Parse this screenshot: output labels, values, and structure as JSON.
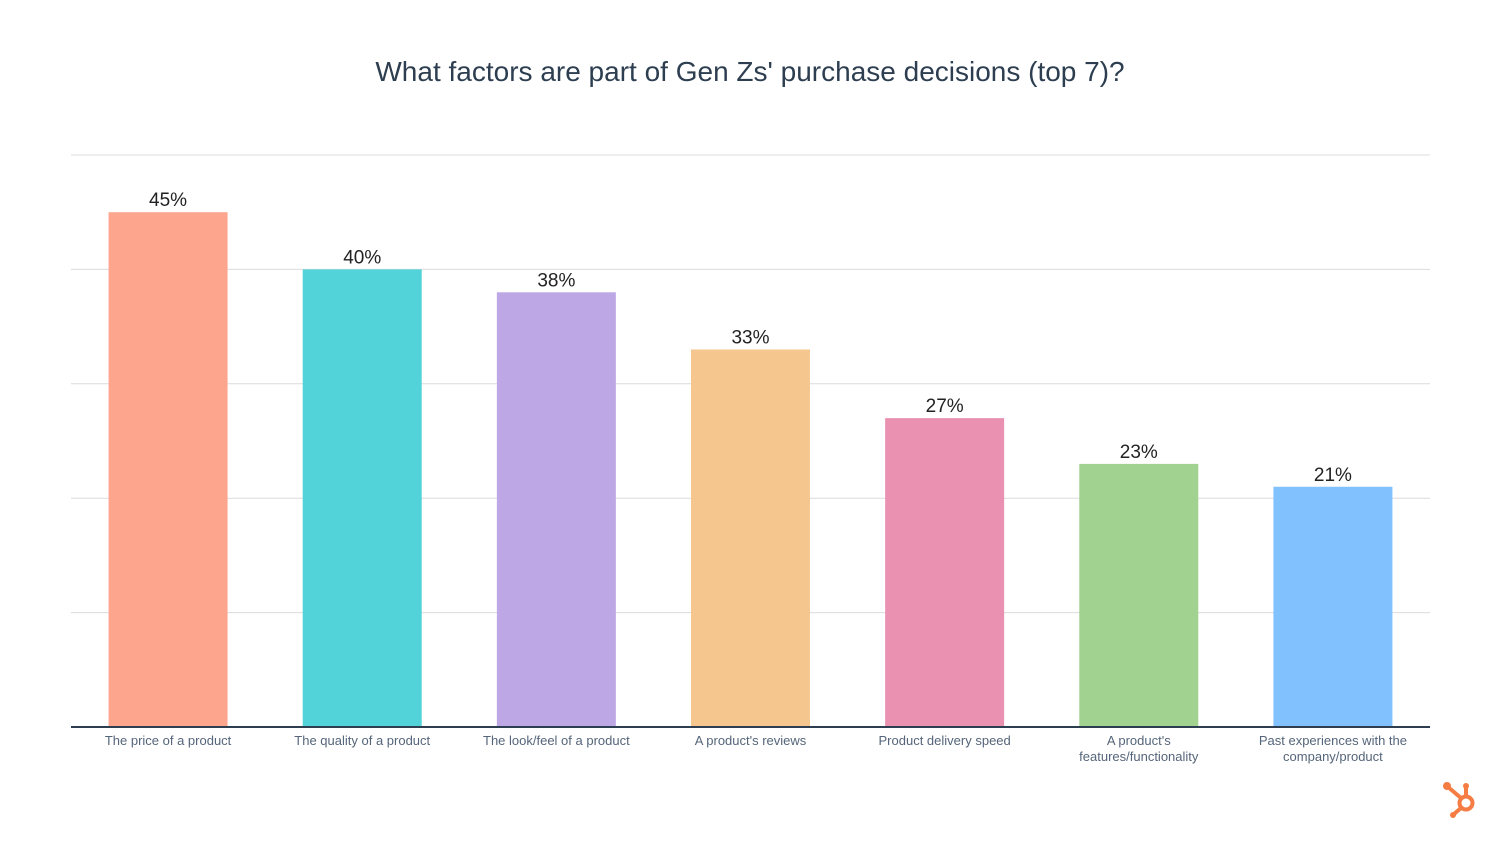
{
  "chart_data": {
    "type": "bar",
    "title": "What factors are part of Gen Zs' purchase decisions (top 7)?",
    "categories": [
      "The price of a product",
      "The quality of a product",
      "The look/feel of a product",
      "A product's reviews",
      "Product delivery speed",
      "A product's features/functionality",
      "Past experiences with the company/product"
    ],
    "category_lines": [
      [
        "The price of a product"
      ],
      [
        "The quality of a product"
      ],
      [
        "The look/feel of a product"
      ],
      [
        "A product's reviews"
      ],
      [
        "Product delivery speed"
      ],
      [
        "A product's",
        "features/functionality"
      ],
      [
        "Past experiences with the",
        "company/product"
      ]
    ],
    "values": [
      45,
      40,
      38,
      33,
      27,
      23,
      21
    ],
    "data_labels": [
      "45%",
      "40%",
      "38%",
      "33%",
      "27%",
      "23%",
      "21%"
    ],
    "colors": [
      "#fea58e",
      "#51d3d9",
      "#bea7e5",
      "#f5c78e",
      "#ea90b1",
      "#a2d28f",
      "#81c1fd"
    ],
    "ylim": [
      0,
      50
    ],
    "grid": true,
    "gridlines": [
      10,
      20,
      30,
      40,
      50
    ],
    "xlabel": "",
    "ylabel": ""
  },
  "brand": {
    "logo": "hubspot-sprocket-icon",
    "color": "#f57c43"
  }
}
